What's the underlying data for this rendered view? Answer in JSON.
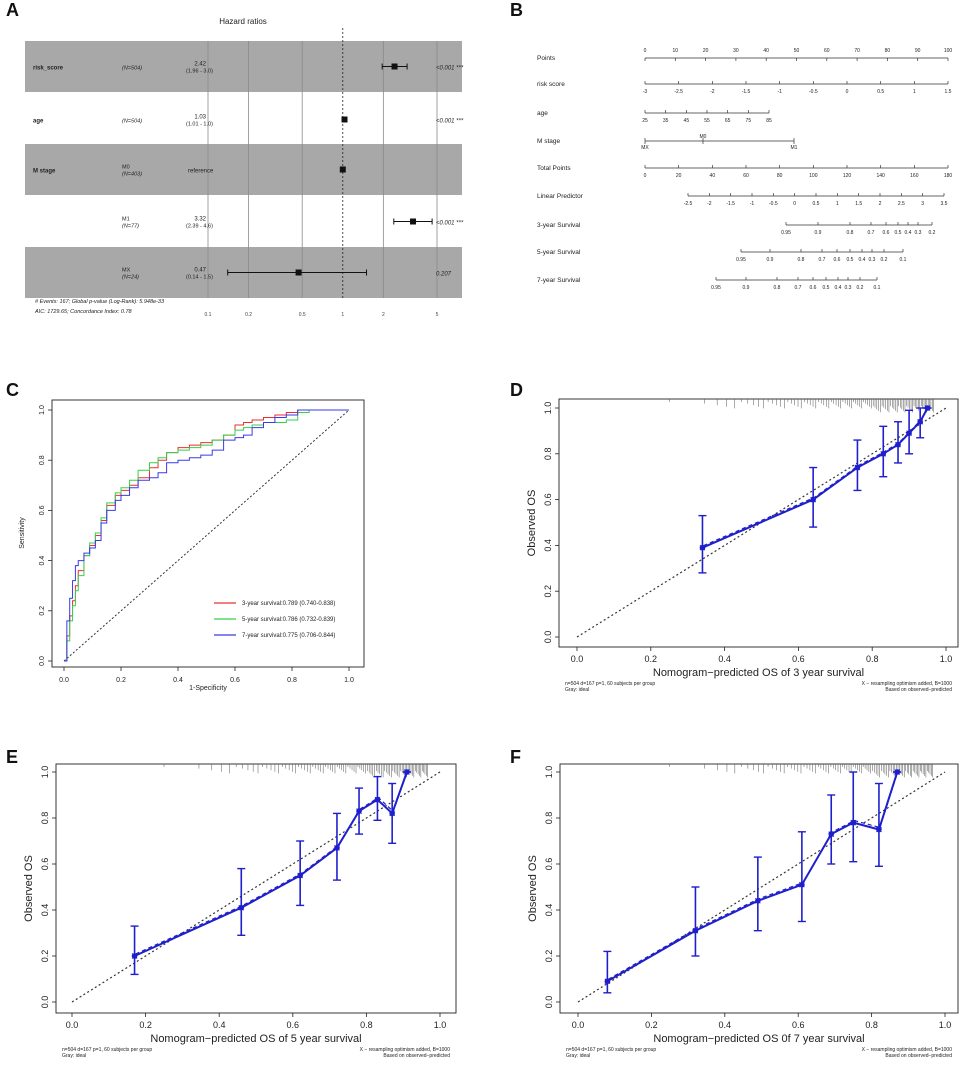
{
  "panel_letters": [
    "A",
    "B",
    "C",
    "D",
    "E",
    "F"
  ],
  "chart_data": [
    {
      "panel": "A",
      "type": "forest",
      "title": "Hazard ratios",
      "rows": [
        {
          "variable": "risk_score",
          "level": "",
          "n": "(N=504)",
          "hr_text": "2.42",
          "ci_text": "(1.96 - 3.0)",
          "hr": 2.42,
          "ci": [
            1.96,
            3.0
          ],
          "p": "<0.001 ***",
          "shaded": true
        },
        {
          "variable": "age",
          "level": "",
          "n": "(N=504)",
          "hr_text": "1.03",
          "ci_text": "(1.01 - 1.0)",
          "hr": 1.03,
          "ci": [
            1.01,
            1.05
          ],
          "p": "<0.001 ***",
          "shaded": false
        },
        {
          "variable": "M stage",
          "level": "M0",
          "n": "(N=403)",
          "hr_text": "reference",
          "ci_text": "",
          "hr": 1.0,
          "ci": null,
          "p": "",
          "shaded": true
        },
        {
          "variable": "",
          "level": "M1",
          "n": "(N=77)",
          "hr_text": "3.32",
          "ci_text": "(2.39 - 4.6)",
          "hr": 3.32,
          "ci": [
            2.39,
            4.6
          ],
          "p": "<0.001 ***",
          "shaded": false
        },
        {
          "variable": "",
          "level": "MX",
          "n": "(N=24)",
          "hr_text": "0.47",
          "ci_text": "(0.14 - 1.5)",
          "hr": 0.47,
          "ci": [
            0.14,
            1.5
          ],
          "p": "0.207",
          "shaded": true
        }
      ],
      "xticks": [
        0.1,
        0.2,
        0.5,
        1,
        2,
        5
      ],
      "xtick_labels": [
        "0.1",
        "0.2",
        "0.5",
        "1",
        "2",
        "5"
      ],
      "footnote": [
        "# Events: 167; Global p-value (Log-Rank): 5.948e-33",
        "AIC: 1729.65; Concordance Index: 0.78"
      ]
    },
    {
      "panel": "B",
      "type": "nomogram",
      "rows": [
        {
          "label": "Points",
          "ticks": [
            "0",
            "10",
            "20",
            "30",
            "40",
            "50",
            "60",
            "70",
            "80",
            "90",
            "100"
          ],
          "range": [
            0,
            100
          ]
        },
        {
          "label": "risk score",
          "ticks": [
            "-3",
            "-2.5",
            "-2",
            "-1.5",
            "-1",
            "-0.5",
            "0",
            "0.5",
            "1",
            "1.5"
          ],
          "range": [
            0,
            100
          ]
        },
        {
          "label": "age",
          "ticks": [
            "25",
            "35",
            "45",
            "55",
            "65",
            "75",
            "85"
          ],
          "range": [
            0,
            40
          ]
        },
        {
          "label": "M stage",
          "ticks": [
            "MX",
            "M0",
            "M1"
          ],
          "range": [
            0,
            50
          ]
        },
        {
          "label": "Total Points",
          "ticks": [
            "0",
            "20",
            "40",
            "60",
            "80",
            "100",
            "120",
            "140",
            "160",
            "180"
          ],
          "range": [
            0,
            180
          ]
        },
        {
          "label": "Linear Predictor",
          "ticks": [
            "-2.5",
            "-2",
            "-1.5",
            "-1",
            "-0.5",
            "0",
            "0.5",
            "1",
            "1.5",
            "2",
            "2.5",
            "3",
            "3.5"
          ],
          "range": [
            -2.5,
            3.5
          ]
        },
        {
          "label": "3-year Survival",
          "ticks": [
            "0.95",
            "0.9",
            "0.8",
            "0.7",
            "0.6",
            "0.5",
            "0.4",
            "0.3",
            "0.2"
          ],
          "range": [
            0.95,
            0.2
          ]
        },
        {
          "label": "5-year Survival",
          "ticks": [
            "0.95",
            "0.9",
            "0.8",
            "0.7",
            "0.6",
            "0.5",
            "0.4",
            "0.3",
            "0.2",
            "0.1"
          ],
          "range": [
            0.95,
            0.1
          ]
        },
        {
          "label": "7-year Survival",
          "ticks": [
            "0.95",
            "0.9",
            "0.8",
            "0.7",
            "0.6",
            "0.5",
            "0.4",
            "0.3",
            "0.2",
            "0.1"
          ],
          "range": [
            0.95,
            0.1
          ]
        }
      ]
    },
    {
      "panel": "C",
      "type": "line",
      "xlabel": "1-Specificity",
      "ylabel": "Sensitivity",
      "xlim": [
        0,
        1
      ],
      "ylim": [
        0,
        1
      ],
      "ticks": [
        "0.0",
        "0.2",
        "0.4",
        "0.6",
        "0.8",
        "1.0"
      ],
      "series": [
        {
          "name": "3-year survival:0.789 (0.740-0.838)",
          "color": "#e8302f",
          "x": [
            0,
            0.01,
            0.02,
            0.03,
            0.04,
            0.05,
            0.07,
            0.09,
            0.11,
            0.13,
            0.15,
            0.18,
            0.2,
            0.23,
            0.26,
            0.3,
            0.33,
            0.36,
            0.4,
            0.44,
            0.48,
            0.52,
            0.56,
            0.6,
            0.63,
            0.66,
            0.7,
            0.74,
            0.78,
            0.82,
            0.86,
            0.9,
            0.95,
            1.0
          ],
          "y": [
            0,
            0.1,
            0.18,
            0.24,
            0.3,
            0.36,
            0.42,
            0.46,
            0.5,
            0.56,
            0.62,
            0.66,
            0.68,
            0.7,
            0.73,
            0.77,
            0.8,
            0.83,
            0.85,
            0.86,
            0.87,
            0.88,
            0.9,
            0.94,
            0.95,
            0.96,
            0.97,
            0.98,
            0.99,
            1.0,
            1.0,
            1.0,
            1.0,
            1.0
          ]
        },
        {
          "name": "5-year survival:0.786 (0.732-0.839)",
          "color": "#36d14b",
          "x": [
            0,
            0.01,
            0.02,
            0.03,
            0.04,
            0.05,
            0.07,
            0.09,
            0.11,
            0.13,
            0.15,
            0.18,
            0.2,
            0.23,
            0.26,
            0.3,
            0.33,
            0.36,
            0.4,
            0.44,
            0.48,
            0.52,
            0.56,
            0.6,
            0.63,
            0.66,
            0.7,
            0.74,
            0.78,
            0.82,
            0.86,
            0.9,
            0.95,
            1.0
          ],
          "y": [
            0,
            0.08,
            0.16,
            0.22,
            0.28,
            0.34,
            0.42,
            0.47,
            0.51,
            0.57,
            0.63,
            0.67,
            0.69,
            0.72,
            0.76,
            0.79,
            0.81,
            0.83,
            0.84,
            0.85,
            0.86,
            0.88,
            0.9,
            0.92,
            0.93,
            0.94,
            0.95,
            0.95,
            0.96,
            0.99,
            1.0,
            1.0,
            1.0,
            1.0
          ]
        },
        {
          "name": "7-year survival:0.775 (0.706-0.844)",
          "color": "#3a3ae8",
          "x": [
            0,
            0.01,
            0.02,
            0.03,
            0.04,
            0.05,
            0.07,
            0.09,
            0.11,
            0.13,
            0.15,
            0.18,
            0.2,
            0.23,
            0.26,
            0.3,
            0.33,
            0.36,
            0.4,
            0.44,
            0.48,
            0.52,
            0.56,
            0.6,
            0.63,
            0.66,
            0.7,
            0.74,
            0.78,
            0.82,
            0.86,
            0.9,
            0.95,
            1.0
          ],
          "y": [
            0,
            0.16,
            0.25,
            0.32,
            0.38,
            0.4,
            0.43,
            0.45,
            0.48,
            0.55,
            0.6,
            0.64,
            0.66,
            0.69,
            0.72,
            0.73,
            0.75,
            0.79,
            0.8,
            0.81,
            0.82,
            0.84,
            0.88,
            0.89,
            0.9,
            0.93,
            0.95,
            0.97,
            0.98,
            1.0,
            1.0,
            1.0,
            1.0,
            1.0
          ]
        }
      ],
      "reference_line": "diagonal"
    },
    {
      "panel": "D",
      "type": "scatter",
      "xlabel": "Nomogram−predicted OS of 3 year survival",
      "ylabel": "Observed OS",
      "xlim": [
        0,
        1
      ],
      "ylim": [
        0,
        1
      ],
      "ticks": [
        "0.0",
        "0.2",
        "0.4",
        "0.6",
        "0.8",
        "1.0"
      ],
      "x": [
        0.34,
        0.64,
        0.76,
        0.83,
        0.87,
        0.9,
        0.93,
        0.95
      ],
      "y": [
        0.39,
        0.6,
        0.74,
        0.8,
        0.84,
        0.89,
        0.94,
        1.0
      ],
      "lower": [
        0.28,
        0.48,
        0.64,
        0.7,
        0.76,
        0.8,
        0.87,
        1.0
      ],
      "upper": [
        0.53,
        0.74,
        0.86,
        0.92,
        0.94,
        0.99,
        1.0,
        1.0
      ],
      "note_left": [
        "n=504 d=167 p=1, 60 subjects per group",
        "Gray: ideal"
      ],
      "note_right": [
        "X − resampling optimism added, B=1000",
        "Based on observed−predicted"
      ]
    },
    {
      "panel": "E",
      "type": "scatter",
      "xlabel": "Nomogram−predicted OS of 5 year survival",
      "ylabel": "Observed OS",
      "xlim": [
        0,
        1
      ],
      "ylim": [
        0,
        1
      ],
      "ticks": [
        "0.0",
        "0.2",
        "0.4",
        "0.6",
        "0.8",
        "1.0"
      ],
      "x": [
        0.17,
        0.46,
        0.62,
        0.72,
        0.78,
        0.83,
        0.87,
        0.91
      ],
      "y": [
        0.2,
        0.41,
        0.55,
        0.67,
        0.83,
        0.88,
        0.82,
        1.0
      ],
      "lower": [
        0.12,
        0.29,
        0.42,
        0.53,
        0.73,
        0.79,
        0.69,
        1.0
      ],
      "upper": [
        0.33,
        0.58,
        0.7,
        0.82,
        0.93,
        0.98,
        0.95,
        1.0
      ],
      "note_left": [
        "n=504 d=167 p=1, 60 subjects per group",
        "Gray: ideal"
      ],
      "note_right": [
        "X − resampling optimism added, B=1000",
        "Based on observed−predicted"
      ]
    },
    {
      "panel": "F",
      "type": "scatter",
      "xlabel": "Nomogram−predicted OS 0f 7 year survival",
      "ylabel": "Observed OS",
      "xlim": [
        0,
        1
      ],
      "ylim": [
        0,
        1
      ],
      "ticks": [
        "0.0",
        "0.2",
        "0.4",
        "0.6",
        "0.8",
        "1.0"
      ],
      "x": [
        0.08,
        0.32,
        0.49,
        0.61,
        0.69,
        0.75,
        0.82,
        0.87
      ],
      "y": [
        0.09,
        0.31,
        0.44,
        0.51,
        0.73,
        0.78,
        0.75,
        1.0
      ],
      "lower": [
        0.04,
        0.2,
        0.31,
        0.35,
        0.6,
        0.61,
        0.59,
        1.0
      ],
      "upper": [
        0.22,
        0.5,
        0.63,
        0.74,
        0.9,
        1.0,
        0.95,
        1.0
      ],
      "note_left": [
        "n=504 d=167 p=1, 60 subjects per group",
        "Gray: ideal"
      ],
      "note_right": [
        "X − resampling optimism added, B=1000",
        "Based on observed−predicted"
      ]
    }
  ]
}
